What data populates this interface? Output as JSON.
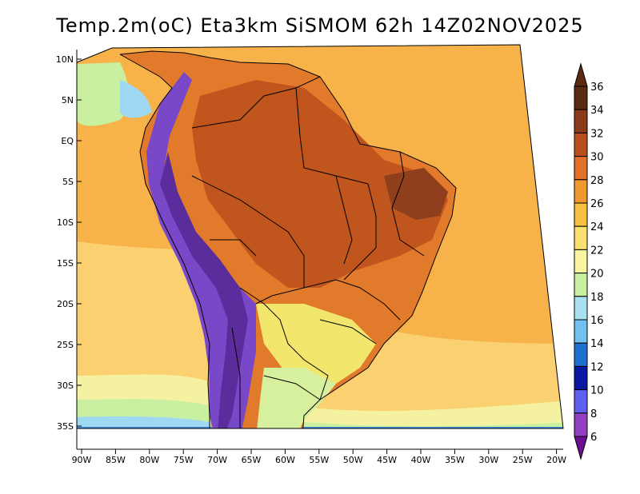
{
  "title": "Temp.2m(oC) Eta3km SiSMOM 62h 14Z02NOV2025",
  "lat_ticks": [
    {
      "label": "10N",
      "lat": 10
    },
    {
      "label": "5N",
      "lat": 5
    },
    {
      "label": "EQ",
      "lat": 0
    },
    {
      "label": "5S",
      "lat": -5
    },
    {
      "label": "10S",
      "lat": -10
    },
    {
      "label": "15S",
      "lat": -15
    },
    {
      "label": "20S",
      "lat": -20
    },
    {
      "label": "25S",
      "lat": -25
    },
    {
      "label": "30S",
      "lat": -30
    },
    {
      "label": "35S",
      "lat": -35
    }
  ],
  "lon_ticks": [
    {
      "label": "90W",
      "lon": -90
    },
    {
      "label": "85W",
      "lon": -85
    },
    {
      "label": "80W",
      "lon": -80
    },
    {
      "label": "75W",
      "lon": -75
    },
    {
      "label": "70W",
      "lon": -70
    },
    {
      "label": "65W",
      "lon": -65
    },
    {
      "label": "60W",
      "lon": -60
    },
    {
      "label": "55W",
      "lon": -55
    },
    {
      "label": "50W",
      "lon": -50
    },
    {
      "label": "45W",
      "lon": -45
    },
    {
      "label": "40W",
      "lon": -40
    },
    {
      "label": "35W",
      "lon": -35
    },
    {
      "label": "30W",
      "lon": -30
    },
    {
      "label": "25W",
      "lon": -25
    },
    {
      "label": "20W",
      "lon": -20
    }
  ],
  "colorbar": {
    "labels": [
      "36",
      "34",
      "32",
      "30",
      "28",
      "26",
      "24",
      "22",
      "20",
      "18",
      "16",
      "14",
      "12",
      "10",
      "8",
      "6"
    ],
    "colors": [
      "#5a2a12",
      "#8b3a1a",
      "#b8501e",
      "#e0702a",
      "#f09830",
      "#f8c040",
      "#fae070",
      "#f8f4a0",
      "#c8f0a0",
      "#a8e0f0",
      "#70c0f0",
      "#2070d0",
      "#0818a0",
      "#6060f0",
      "#9040c0",
      "#6a1090"
    ],
    "top_cap": "#5a2a12",
    "bottom_cap": "#6a1090"
  },
  "palette": {
    "ocean_tropical": "#f7b34a",
    "ocean_mid": "#fad070",
    "ocean_cool": "#f4f2a0",
    "ocean_cold": "#c8f0a0",
    "ocean_colder": "#9fd8f2",
    "ocean_coldest": "#3c8de0",
    "land_hot": "#e27a2c",
    "land_very_hot": "#c0561e",
    "land_extreme": "#8f3f1c",
    "andes_cold": "#7848c8",
    "andes_colder": "#5a2c9c",
    "south_mild": "#f3e66c",
    "south_cool": "#d6f09e",
    "border_line": "#000000",
    "frame_fill": "#ffffff"
  }
}
